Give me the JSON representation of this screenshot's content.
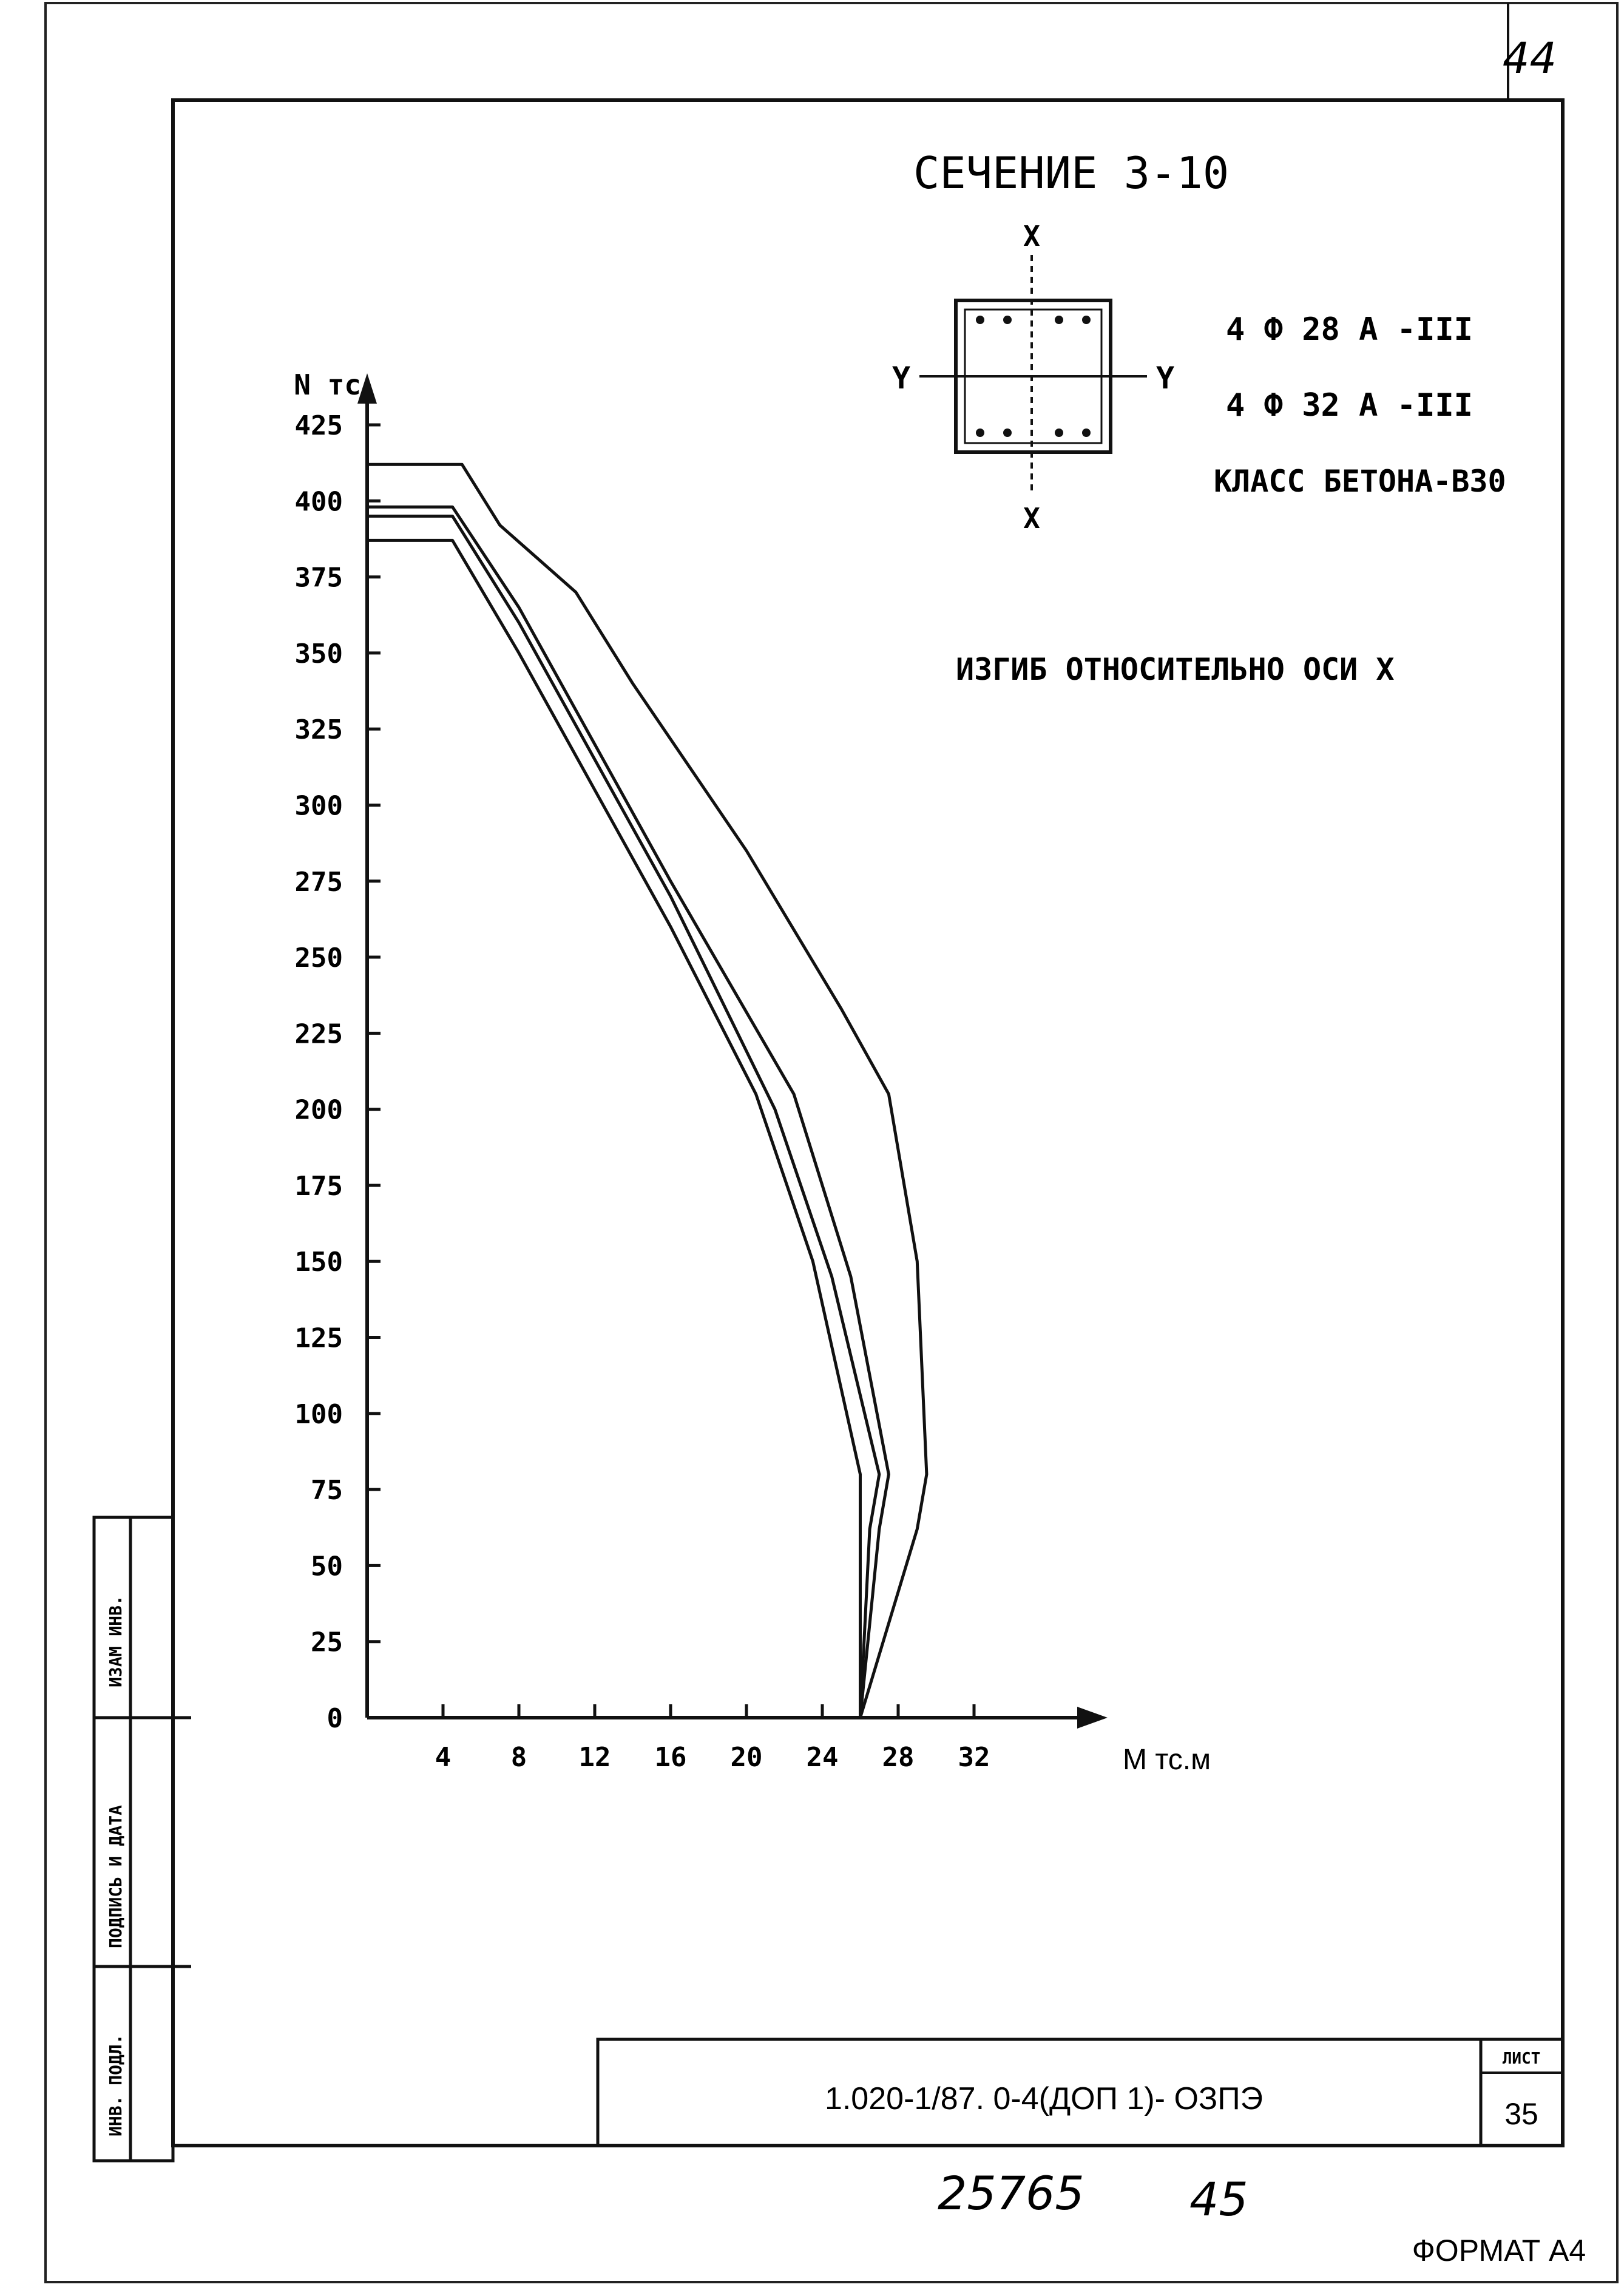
{
  "sheet": {
    "top_right_number": "44",
    "section_title": "СЕЧЕНИЕ 3-10",
    "axis_letters": {
      "top": "X",
      "bottom": "X",
      "left": "Y",
      "right": "Y"
    },
    "reinforcement": [
      "4 Ф 28 А -III",
      "4 Ф 32 А -III"
    ],
    "concrete_class": "КЛАСС БЕТОНА-В30",
    "bending_note": "ИЗГИБ ОТНОСИТЕЛЬНО ОСИ X",
    "side_stamp": {
      "col1": "ИЗАМ ИНВ.",
      "col2": "ПОДПИСЬ И ДАТА",
      "col3": "ИНВ. ПОДЛ."
    },
    "title_block": {
      "code": "1.020-1/87. 0-4(ДОП 1)- ОЗПЭ",
      "sheet_label": "ЛИСТ",
      "sheet_no": "35"
    },
    "handwritten": {
      "left": "25765",
      "right": "45"
    },
    "format": "ФОРМАТ А4"
  },
  "chart_data": {
    "type": "line",
    "ylabel": "N тс",
    "xlabel": "М тс.м",
    "xlim": [
      0,
      36
    ],
    "ylim": [
      0,
      425
    ],
    "x_ticks": [
      4,
      8,
      12,
      16,
      20,
      24,
      28,
      32
    ],
    "y_ticks": [
      0,
      25,
      50,
      75,
      100,
      125,
      150,
      175,
      200,
      225,
      250,
      275,
      300,
      325,
      350,
      375,
      400,
      425
    ],
    "grid": false,
    "series": [
      {
        "points": [
          [
            0,
            412
          ],
          [
            5,
            412
          ],
          [
            7,
            392
          ],
          [
            11,
            370
          ],
          [
            14,
            340
          ],
          [
            20,
            285
          ],
          [
            25,
            233
          ],
          [
            27.5,
            205
          ],
          [
            29,
            150
          ],
          [
            29.5,
            80
          ],
          [
            29,
            62
          ],
          [
            26,
            0
          ]
        ]
      },
      {
        "points": [
          [
            0,
            398
          ],
          [
            4.5,
            398
          ],
          [
            8,
            365
          ],
          [
            16,
            275
          ],
          [
            22.5,
            205
          ],
          [
            25.5,
            145
          ],
          [
            27.5,
            80
          ],
          [
            27,
            62
          ],
          [
            26,
            0
          ]
        ]
      },
      {
        "points": [
          [
            0,
            395
          ],
          [
            4.5,
            395
          ],
          [
            8,
            360
          ],
          [
            16,
            270
          ],
          [
            21.5,
            200
          ],
          [
            24.5,
            145
          ],
          [
            27,
            80
          ],
          [
            26.5,
            62
          ],
          [
            26,
            0
          ]
        ]
      },
      {
        "points": [
          [
            0,
            387
          ],
          [
            4.5,
            387
          ],
          [
            8,
            350
          ],
          [
            12,
            305
          ],
          [
            16,
            260
          ],
          [
            20.5,
            205
          ],
          [
            23.5,
            150
          ],
          [
            26,
            80
          ],
          [
            26,
            0
          ]
        ]
      }
    ]
  }
}
